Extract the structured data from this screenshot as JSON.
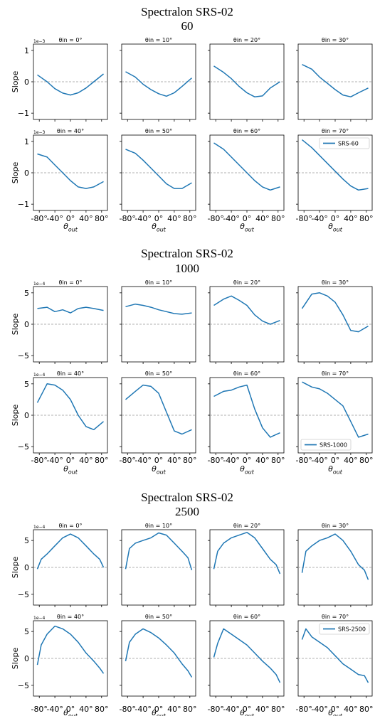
{
  "figure": {
    "blocks": [
      {
        "title_line1": "Spectralon SRS-02",
        "title_line2": "60",
        "scale_label": "1e−3",
        "legend_label": "SRS-60",
        "legend_panel": 7,
        "legend_position": "top-right"
      },
      {
        "title_line1": "Spectralon SRS-02",
        "title_line2": "1000",
        "scale_label": "1e−4",
        "legend_label": "SRS-1000",
        "legend_panel": 7,
        "legend_position": "bottom-left"
      },
      {
        "title_line1": "Spectralon SRS-02",
        "title_line2": "2500",
        "scale_label": "1e−4",
        "legend_label": "SRS-2500",
        "legend_panel": 7,
        "legend_position": "top-right"
      }
    ],
    "panel_titles": [
      "θin = 0°",
      "θin = 10°",
      "θin = 20°",
      "θin = 30°",
      "θin = 40°",
      "θin = 50°",
      "θin = 60°",
      "θin = 70°"
    ],
    "ylabel": "Slope",
    "xlabel": "θout",
    "xticks": [
      "-80°",
      "-40°",
      "0°",
      "40°",
      "80°"
    ],
    "line_color": "#1f77b4",
    "zero_line_color": "#999999"
  },
  "chart_data": [
    {
      "type": "line",
      "title": "Spectralon SRS-02 60",
      "xlabel": "θout",
      "ylabel": "Slope",
      "y_scale": "1e-3",
      "xlim": [
        -95,
        95
      ],
      "ylim": [
        -1.2,
        1.2
      ],
      "yticks": [
        -1,
        0,
        1
      ],
      "grid": false,
      "series_name": "SRS-60",
      "zero_line": 0,
      "panels": [
        {
          "name": "θin = 0°",
          "x": [
            -85,
            -60,
            -40,
            -20,
            0,
            20,
            40,
            60,
            85
          ],
          "y": [
            0.22,
            0.0,
            -0.22,
            -0.36,
            -0.42,
            -0.35,
            -0.2,
            0.0,
            0.25
          ]
        },
        {
          "name": "θin = 10°",
          "x": [
            -85,
            -60,
            -40,
            -20,
            0,
            20,
            40,
            60,
            85
          ],
          "y": [
            0.32,
            0.15,
            -0.08,
            -0.25,
            -0.38,
            -0.46,
            -0.35,
            -0.15,
            0.12
          ]
        },
        {
          "name": "θin = 20°",
          "x": [
            -85,
            -60,
            -40,
            -20,
            0,
            20,
            40,
            60,
            85
          ],
          "y": [
            0.5,
            0.3,
            0.1,
            -0.15,
            -0.35,
            -0.48,
            -0.45,
            -0.2,
            0.0
          ]
        },
        {
          "name": "θin = 30°",
          "x": [
            -85,
            -60,
            -40,
            -20,
            0,
            20,
            40,
            60,
            85
          ],
          "y": [
            0.55,
            0.4,
            0.15,
            -0.05,
            -0.25,
            -0.42,
            -0.48,
            -0.35,
            -0.2
          ]
        },
        {
          "name": "θin = 40°",
          "x": [
            -85,
            -60,
            -40,
            -20,
            0,
            20,
            40,
            60,
            85
          ],
          "y": [
            0.6,
            0.5,
            0.25,
            0.0,
            -0.25,
            -0.45,
            -0.5,
            -0.45,
            -0.28
          ]
        },
        {
          "name": "θin = 50°",
          "x": [
            -85,
            -60,
            -40,
            -20,
            0,
            20,
            40,
            60,
            85
          ],
          "y": [
            0.75,
            0.62,
            0.4,
            0.15,
            -0.1,
            -0.35,
            -0.5,
            -0.5,
            -0.32
          ]
        },
        {
          "name": "θin = 60°",
          "x": [
            -85,
            -60,
            -40,
            -20,
            0,
            20,
            40,
            60,
            85
          ],
          "y": [
            0.95,
            0.75,
            0.5,
            0.25,
            0.0,
            -0.25,
            -0.45,
            -0.55,
            -0.45
          ]
        },
        {
          "name": "θin = 70°",
          "x": [
            -85,
            -60,
            -40,
            -20,
            0,
            20,
            40,
            60,
            85
          ],
          "y": [
            1.05,
            0.8,
            0.55,
            0.3,
            0.05,
            -0.2,
            -0.42,
            -0.55,
            -0.5
          ]
        }
      ]
    },
    {
      "type": "line",
      "title": "Spectralon SRS-02 1000",
      "xlabel": "θout",
      "ylabel": "Slope",
      "y_scale": "1e-4",
      "xlim": [
        -95,
        95
      ],
      "ylim": [
        -6,
        6
      ],
      "yticks": [
        -5,
        0,
        5
      ],
      "grid": false,
      "series_name": "SRS-1000",
      "zero_line": 0,
      "panels": [
        {
          "name": "θin = 0°",
          "x": [
            -85,
            -60,
            -40,
            -20,
            0,
            20,
            40,
            60,
            85
          ],
          "y": [
            2.5,
            2.7,
            2.0,
            2.3,
            1.8,
            2.5,
            2.7,
            2.5,
            2.2
          ]
        },
        {
          "name": "θin = 10°",
          "x": [
            -85,
            -60,
            -40,
            -20,
            0,
            20,
            40,
            60,
            85
          ],
          "y": [
            2.8,
            3.2,
            3.0,
            2.7,
            2.3,
            2.0,
            1.7,
            1.6,
            1.8
          ]
        },
        {
          "name": "θin = 20°",
          "x": [
            -85,
            -60,
            -40,
            -20,
            0,
            20,
            40,
            60,
            85
          ],
          "y": [
            3.0,
            4.0,
            4.5,
            3.8,
            3.0,
            1.5,
            0.5,
            0.0,
            0.6
          ]
        },
        {
          "name": "θin = 30°",
          "x": [
            -85,
            -60,
            -40,
            -20,
            0,
            20,
            40,
            60,
            85
          ],
          "y": [
            2.5,
            4.8,
            5.0,
            4.5,
            3.5,
            1.5,
            -1.0,
            -1.2,
            -0.3
          ]
        },
        {
          "name": "θin = 40°",
          "x": [
            -85,
            -60,
            -40,
            -20,
            0,
            20,
            40,
            60,
            85
          ],
          "y": [
            2.0,
            5.0,
            4.8,
            4.0,
            2.5,
            0.0,
            -1.8,
            -2.3,
            -1.0
          ]
        },
        {
          "name": "θin = 50°",
          "x": [
            -85,
            -60,
            -40,
            -20,
            0,
            20,
            40,
            60,
            85
          ],
          "y": [
            2.5,
            3.8,
            4.8,
            4.6,
            3.5,
            0.5,
            -2.5,
            -3.0,
            -2.3
          ]
        },
        {
          "name": "θin = 60°",
          "x": [
            -85,
            -60,
            -40,
            -20,
            0,
            20,
            40,
            60,
            85
          ],
          "y": [
            3.0,
            3.8,
            4.0,
            4.5,
            4.8,
            1.0,
            -2.0,
            -3.5,
            -2.8
          ]
        },
        {
          "name": "θin = 70°",
          "x": [
            -85,
            -60,
            -40,
            -20,
            0,
            20,
            40,
            60,
            85
          ],
          "y": [
            5.3,
            4.5,
            4.2,
            3.5,
            2.5,
            1.5,
            -1.0,
            -3.5,
            -3.0
          ]
        }
      ]
    },
    {
      "type": "line",
      "title": "Spectralon SRS-02 2500",
      "xlabel": "θout",
      "ylabel": "Slope",
      "y_scale": "1e-4",
      "xlim": [
        -95,
        95
      ],
      "ylim": [
        -7,
        7
      ],
      "yticks": [
        -5,
        0,
        5
      ],
      "grid": false,
      "series_name": "SRS-2500",
      "zero_line": 0,
      "panels": [
        {
          "name": "θin = 0°",
          "x": [
            -85,
            -75,
            -60,
            -40,
            -20,
            0,
            20,
            40,
            60,
            75,
            85
          ],
          "y": [
            -0.3,
            1.5,
            2.5,
            4.0,
            5.5,
            6.2,
            5.5,
            4.0,
            2.5,
            1.5,
            0.0
          ]
        },
        {
          "name": "θin = 10°",
          "x": [
            -85,
            -75,
            -60,
            -40,
            -20,
            0,
            20,
            40,
            60,
            75,
            85
          ],
          "y": [
            -0.3,
            3.5,
            4.5,
            5.0,
            5.5,
            6.4,
            6.0,
            4.5,
            3.0,
            1.8,
            -0.5
          ]
        },
        {
          "name": "θin = 20°",
          "x": [
            -85,
            -75,
            -60,
            -40,
            -20,
            0,
            20,
            40,
            60,
            75,
            85
          ],
          "y": [
            -0.3,
            3.0,
            4.5,
            5.5,
            6.0,
            6.5,
            5.5,
            3.5,
            1.5,
            0.5,
            -1.2
          ]
        },
        {
          "name": "θin = 30°",
          "x": [
            -85,
            -75,
            -60,
            -40,
            -20,
            0,
            20,
            40,
            60,
            75,
            85
          ],
          "y": [
            -1.0,
            3.0,
            4.0,
            5.0,
            5.5,
            6.2,
            5.0,
            3.0,
            0.5,
            -0.5,
            -2.3
          ]
        },
        {
          "name": "θin = 40°",
          "x": [
            -85,
            -75,
            -60,
            -40,
            -20,
            0,
            20,
            40,
            60,
            75,
            85
          ],
          "y": [
            -1.2,
            2.5,
            4.5,
            6.0,
            5.5,
            4.5,
            3.0,
            1.0,
            -0.5,
            -1.8,
            -2.8
          ]
        },
        {
          "name": "θin = 50°",
          "x": [
            -85,
            -75,
            -60,
            -40,
            -20,
            0,
            20,
            40,
            60,
            75,
            85
          ],
          "y": [
            -0.5,
            3.0,
            4.5,
            5.5,
            4.8,
            3.8,
            2.5,
            1.0,
            -1.0,
            -2.3,
            -3.5
          ]
        },
        {
          "name": "θin = 60°",
          "x": [
            -85,
            -75,
            -60,
            -40,
            -20,
            0,
            20,
            40,
            60,
            75,
            85
          ],
          "y": [
            0.2,
            2.8,
            5.5,
            4.5,
            3.5,
            2.5,
            1.0,
            -0.5,
            -1.8,
            -3.0,
            -4.5
          ]
        },
        {
          "name": "θin = 70°",
          "x": [
            -85,
            -75,
            -60,
            -40,
            -20,
            0,
            20,
            40,
            60,
            75,
            85
          ],
          "y": [
            3.5,
            5.5,
            4.0,
            3.0,
            2.0,
            0.5,
            -1.0,
            -2.0,
            -3.0,
            -3.2,
            -4.5
          ]
        }
      ]
    }
  ]
}
